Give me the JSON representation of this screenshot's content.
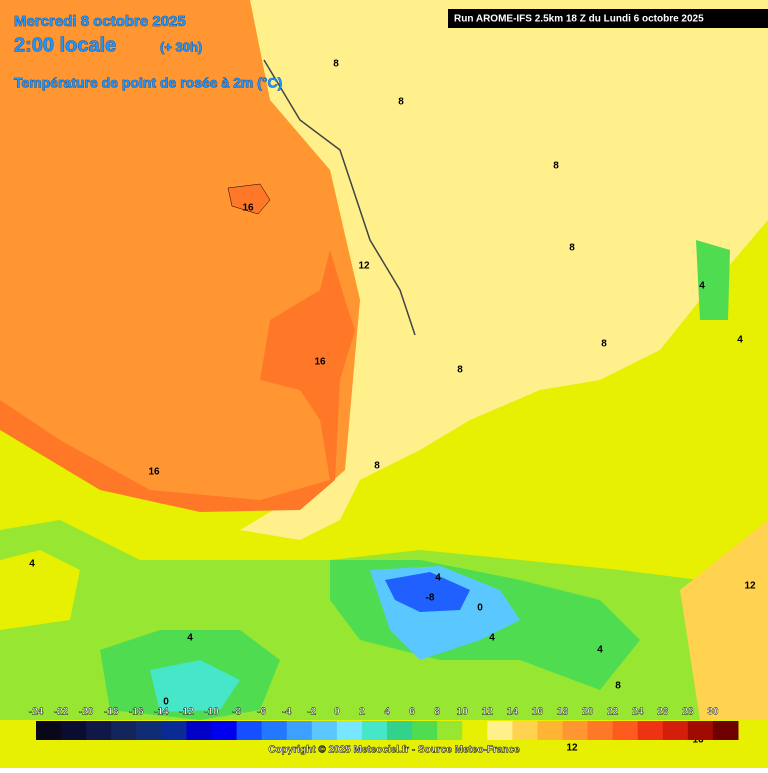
{
  "header": {
    "date": "Mercredi 8 octobre 2025",
    "time": "2:00 locale",
    "lead": "(+ 30h)",
    "parameter": "Température de point de rosée à 2m (°C)",
    "run": "Run AROME-IFS 2.5km 18 Z du Lundi 6 octobre 2025"
  },
  "contour_labels": [
    16,
    16,
    16,
    12,
    8,
    8,
    8,
    8,
    8,
    8,
    8,
    4,
    4,
    4,
    4,
    4,
    -8,
    0,
    4,
    4,
    8,
    12,
    12,
    16,
    0
  ],
  "colorbar": {
    "ticks": [
      -24,
      -22,
      -20,
      -18,
      -16,
      -14,
      -12,
      -10,
      -8,
      -6,
      -4,
      -2,
      0,
      2,
      4,
      6,
      8,
      10,
      12,
      14,
      16,
      18,
      20,
      22,
      24,
      26,
      28,
      30
    ],
    "colors": [
      "#080818",
      "#0c0c30",
      "#101848",
      "#14245c",
      "#102c74",
      "#0a2a96",
      "#0000c8",
      "#0000f0",
      "#1450ff",
      "#2278ff",
      "#3ca0ff",
      "#5ac8ff",
      "#78e6ff",
      "#46e6c8",
      "#32d28c",
      "#50dc50",
      "#96e632",
      "#e6f000",
      "#fff08c",
      "#ffd250",
      "#ffb432",
      "#ff9632",
      "#ff7828",
      "#ff5a1e",
      "#f03214",
      "#d21e0a",
      "#a00a00",
      "#6e0000"
    ]
  },
  "footer": {
    "copyright": "Copyright © 2025 Meteociel.fr - Source Meteo-France"
  }
}
